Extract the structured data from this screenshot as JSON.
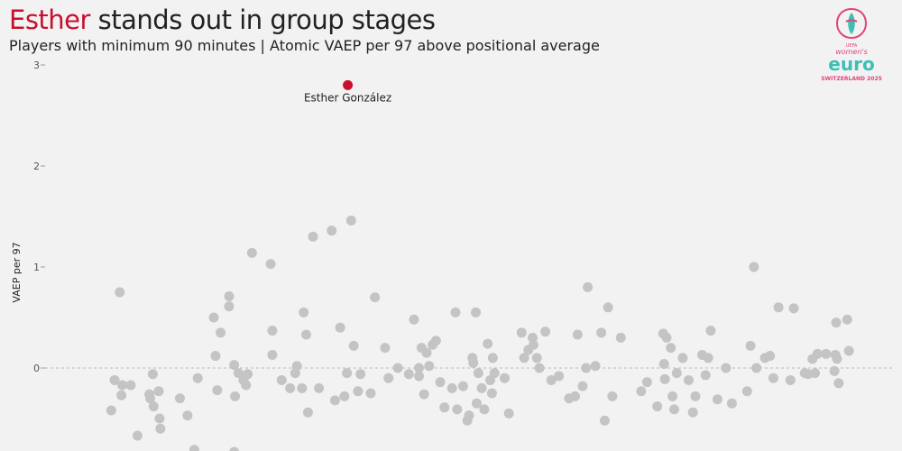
{
  "title": {
    "highlight": "Esther",
    "rest": " stands out in group stages"
  },
  "subtitle": "Players with minimum 90 minutes | Atomic VAEP per 97 above positional average",
  "logo": {
    "line1": "UEFA",
    "line2": "women's",
    "line3": "euro",
    "line4": "SWITZERLAND 2025"
  },
  "colors": {
    "highlight": "#c8102e",
    "dots": "#c4c4c4",
    "baseline": "#bbbbbb",
    "background": "#f2f2f2"
  },
  "chart_data": {
    "type": "scatter",
    "ylabel": "VAEP per 97",
    "ylim": [
      -0.85,
      3.05
    ],
    "yticks": [
      0,
      1,
      2,
      3
    ],
    "yticklabels": [
      "0",
      "1",
      "2",
      "3"
    ],
    "x_meaning": "players (jittered strip, no x axis)",
    "xlim": [
      0,
      100
    ],
    "highlight": {
      "name": "Esther González",
      "x": 35.7,
      "y": 2.8
    },
    "points": [
      [
        7.8,
        -0.42
      ],
      [
        8.2,
        -0.12
      ],
      [
        8.8,
        0.75
      ],
      [
        9.0,
        -0.27
      ],
      [
        9.1,
        -0.17
      ],
      [
        10.1,
        -0.17
      ],
      [
        10.9,
        -0.67
      ],
      [
        12.3,
        -0.26
      ],
      [
        12.4,
        -0.3
      ],
      [
        12.7,
        -0.06
      ],
      [
        12.8,
        -0.38
      ],
      [
        13.4,
        -0.23
      ],
      [
        13.5,
        -0.5
      ],
      [
        13.6,
        -0.6
      ],
      [
        15.9,
        -0.3
      ],
      [
        16.8,
        -0.47
      ],
      [
        17.6,
        -0.81
      ],
      [
        18.0,
        -0.1
      ],
      [
        19.9,
        0.5
      ],
      [
        20.1,
        0.12
      ],
      [
        20.3,
        -0.22
      ],
      [
        20.7,
        0.35
      ],
      [
        21.7,
        0.71
      ],
      [
        21.7,
        0.61
      ],
      [
        22.3,
        0.03
      ],
      [
        22.4,
        -0.28
      ],
      [
        22.8,
        -0.05
      ],
      [
        23.4,
        -0.12
      ],
      [
        23.7,
        -0.17
      ],
      [
        23.9,
        -0.06
      ],
      [
        24.4,
        1.14
      ],
      [
        26.6,
        1.03
      ],
      [
        26.8,
        0.37
      ],
      [
        26.8,
        0.13
      ],
      [
        27.9,
        -0.12
      ],
      [
        28.9,
        -0.2
      ],
      [
        29.5,
        -0.05
      ],
      [
        29.7,
        0.02
      ],
      [
        30.3,
        -0.2
      ],
      [
        30.5,
        0.55
      ],
      [
        30.8,
        0.33
      ],
      [
        31.0,
        -0.44
      ],
      [
        31.6,
        1.3
      ],
      [
        32.3,
        -0.2
      ],
      [
        33.8,
        1.36
      ],
      [
        34.8,
        0.4
      ],
      [
        34.2,
        -0.32
      ],
      [
        35.3,
        -0.28
      ],
      [
        35.6,
        -0.05
      ],
      [
        36.1,
        1.46
      ],
      [
        36.4,
        0.22
      ],
      [
        36.9,
        -0.23
      ],
      [
        37.2,
        -0.06
      ],
      [
        38.4,
        -0.25
      ],
      [
        38.9,
        0.7
      ],
      [
        40.1,
        0.2
      ],
      [
        40.5,
        -0.1
      ],
      [
        41.6,
        0.0
      ],
      [
        42.9,
        -0.06
      ],
      [
        43.5,
        0.48
      ],
      [
        44.1,
        0.0
      ],
      [
        44.1,
        -0.08
      ],
      [
        44.4,
        0.2
      ],
      [
        44.7,
        -0.26
      ],
      [
        45.0,
        0.15
      ],
      [
        45.3,
        0.02
      ],
      [
        45.7,
        0.23
      ],
      [
        46.1,
        0.27
      ],
      [
        46.6,
        -0.14
      ],
      [
        47.1,
        -0.39
      ],
      [
        48.0,
        -0.2
      ],
      [
        48.4,
        0.55
      ],
      [
        48.6,
        -0.41
      ],
      [
        49.3,
        -0.18
      ],
      [
        49.8,
        -0.52
      ],
      [
        50.0,
        -0.47
      ],
      [
        50.4,
        0.1
      ],
      [
        50.5,
        0.05
      ],
      [
        50.8,
        0.55
      ],
      [
        50.9,
        -0.35
      ],
      [
        51.1,
        -0.05
      ],
      [
        51.5,
        -0.2
      ],
      [
        51.8,
        -0.41
      ],
      [
        52.2,
        0.24
      ],
      [
        52.5,
        -0.12
      ],
      [
        52.7,
        -0.25
      ],
      [
        52.8,
        0.1
      ],
      [
        53.0,
        -0.05
      ],
      [
        54.2,
        -0.1
      ],
      [
        54.7,
        -0.45
      ],
      [
        56.2,
        0.35
      ],
      [
        56.5,
        0.1
      ],
      [
        57.0,
        0.18
      ],
      [
        57.5,
        0.3
      ],
      [
        57.6,
        0.23
      ],
      [
        58.0,
        0.1
      ],
      [
        58.3,
        0.0
      ],
      [
        59.0,
        0.36
      ],
      [
        59.7,
        -0.12
      ],
      [
        60.6,
        -0.08
      ],
      [
        61.8,
        -0.3
      ],
      [
        62.5,
        -0.28
      ],
      [
        62.8,
        0.33
      ],
      [
        63.4,
        -0.18
      ],
      [
        63.8,
        0.0
      ],
      [
        64.0,
        0.8
      ],
      [
        64.9,
        0.02
      ],
      [
        65.6,
        0.35
      ],
      [
        66.0,
        -0.52
      ],
      [
        66.4,
        0.6
      ],
      [
        66.9,
        -0.28
      ],
      [
        67.9,
        0.3
      ],
      [
        70.3,
        -0.23
      ],
      [
        71.0,
        -0.14
      ],
      [
        72.2,
        -0.38
      ],
      [
        72.9,
        0.34
      ],
      [
        73.0,
        0.04
      ],
      [
        73.1,
        -0.11
      ],
      [
        73.3,
        0.3
      ],
      [
        73.8,
        0.2
      ],
      [
        74.0,
        -0.28
      ],
      [
        74.2,
        -0.41
      ],
      [
        74.5,
        -0.05
      ],
      [
        75.2,
        0.1
      ],
      [
        75.9,
        -0.12
      ],
      [
        76.4,
        -0.44
      ],
      [
        76.7,
        -0.28
      ],
      [
        77.5,
        0.13
      ],
      [
        77.9,
        -0.07
      ],
      [
        78.2,
        0.1
      ],
      [
        78.5,
        0.37
      ],
      [
        79.3,
        -0.31
      ],
      [
        80.3,
        0.0
      ],
      [
        81.0,
        -0.35
      ],
      [
        82.8,
        -0.23
      ],
      [
        83.2,
        0.22
      ],
      [
        83.6,
        1.0
      ],
      [
        83.9,
        0.0
      ],
      [
        84.9,
        0.1
      ],
      [
        85.5,
        0.12
      ],
      [
        85.9,
        -0.1
      ],
      [
        86.5,
        0.6
      ],
      [
        87.9,
        -0.12
      ],
      [
        88.3,
        0.59
      ],
      [
        89.6,
        -0.05
      ],
      [
        90.0,
        -0.06
      ],
      [
        90.5,
        0.09
      ],
      [
        90.8,
        -0.05
      ],
      [
        91.1,
        0.14
      ],
      [
        92.1,
        0.14
      ],
      [
        93.1,
        -0.03
      ],
      [
        93.3,
        0.45
      ],
      [
        93.2,
        0.13
      ],
      [
        93.6,
        -0.15
      ],
      [
        93.4,
        0.09
      ],
      [
        94.6,
        0.48
      ],
      [
        94.8,
        0.17
      ],
      [
        22.3,
        -0.83
      ]
    ]
  }
}
